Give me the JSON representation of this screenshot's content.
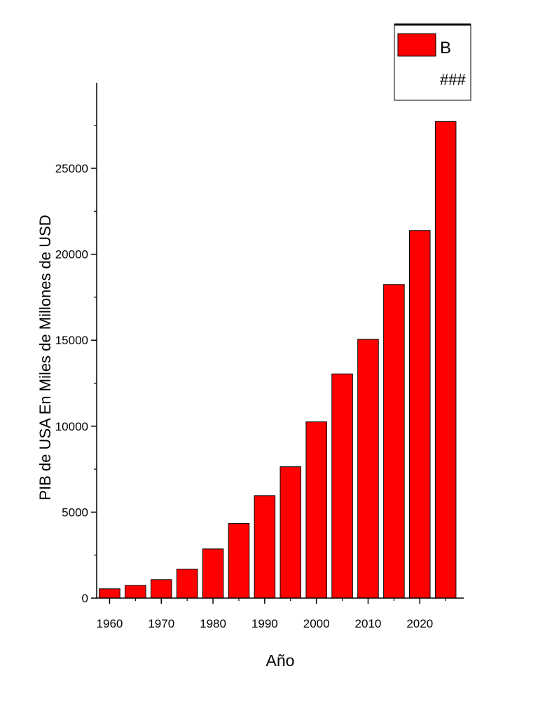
{
  "chart_data": {
    "type": "bar",
    "categories": [
      "1960",
      "1965",
      "1970",
      "1975",
      "1980",
      "1985",
      "1990",
      "1995",
      "2000",
      "2005",
      "2010",
      "2015",
      "2020",
      "2025"
    ],
    "x_ticks": [
      "1960",
      "1970",
      "1980",
      "1990",
      "2000",
      "2010",
      "2020"
    ],
    "y_ticks": [
      "0",
      "5000",
      "10000",
      "15000",
      "20000",
      "25000"
    ],
    "series": [
      {
        "name": "B",
        "color": "#ff0000",
        "values": [
          540,
          740,
          1070,
          1680,
          2860,
          4340,
          5960,
          7640,
          10250,
          13040,
          15050,
          18240,
          21380,
          27720
        ]
      }
    ],
    "xlabel": "Año",
    "ylabel": "PIB de USA En Miles de Millones de USD",
    "ylim": [
      0,
      29900
    ],
    "legend": {
      "position": "top-right",
      "entries": [
        "B",
        "###"
      ]
    }
  }
}
